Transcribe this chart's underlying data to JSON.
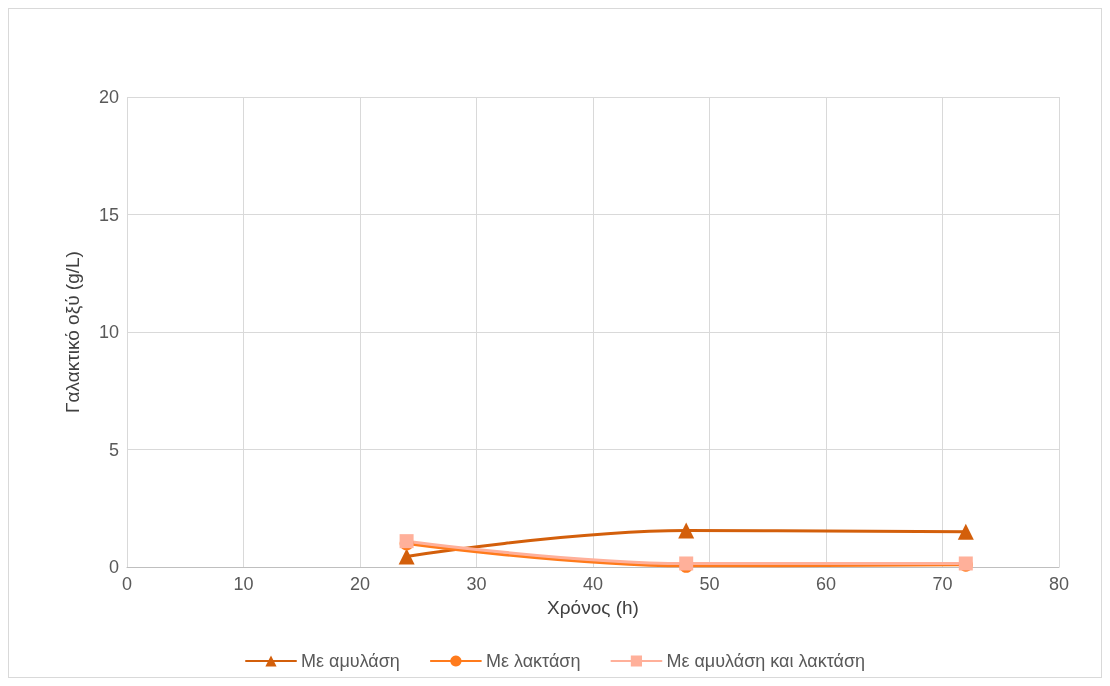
{
  "chart_data": {
    "type": "line",
    "xlabel": "Χρόνος (h)",
    "ylabel": "Γαλακτικό οξύ (g/L)",
    "x": [
      24,
      48,
      72
    ],
    "series": [
      {
        "name": "Με αμυλάση",
        "color": "#d35f0b",
        "marker": "triangle",
        "values": [
          0.45,
          1.55,
          1.5
        ]
      },
      {
        "name": "Με λακτάση",
        "color": "#ff7b1c",
        "marker": "circle",
        "values": [
          1.0,
          0.05,
          0.1
        ]
      },
      {
        "name": "Με αμυλάση και λακτάση",
        "color": "#ffb09a",
        "marker": "square",
        "values": [
          1.1,
          0.15,
          0.15
        ]
      }
    ],
    "xlim": [
      0,
      80
    ],
    "xticks": [
      0,
      10,
      20,
      30,
      40,
      50,
      60,
      70,
      80
    ],
    "ylim": [
      0,
      20
    ],
    "yticks": [
      0,
      5,
      10,
      15,
      20
    ],
    "grid": true,
    "legend": "bottom"
  }
}
